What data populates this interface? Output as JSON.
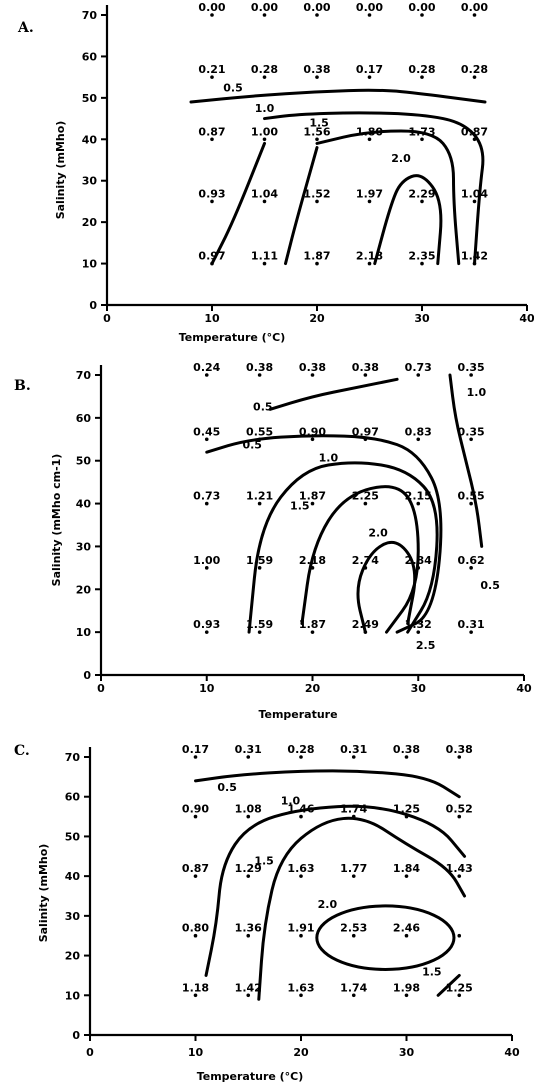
{
  "chart_data": [
    {
      "type": "heatmap",
      "panel_label": "A.",
      "xlabel": "Temperature (°C)",
      "ylabel": "Salinity (mMho)",
      "xlim": [
        0,
        40
      ],
      "ylim": [
        0,
        70
      ],
      "xticks": [
        0,
        10,
        20,
        30,
        40
      ],
      "yticks": [
        0,
        10,
        20,
        30,
        40,
        50,
        60,
        70
      ],
      "x": [
        10,
        15,
        20,
        25,
        30,
        35
      ],
      "y": [
        70,
        55,
        40,
        25,
        10
      ],
      "values": [
        [
          "0.00",
          "0.00",
          "0.00",
          "0.00",
          "0.00",
          "0.00"
        ],
        [
          "0.21",
          "0.28",
          "0.38",
          "0.17",
          "0.28",
          "0.28"
        ],
        [
          "0.87",
          "1.00",
          "1.56",
          "1.80",
          "1.73",
          "0.87"
        ],
        [
          "0.93",
          "1.04",
          "1.52",
          "1.97",
          "2.29",
          "1.04"
        ],
        [
          "0.97",
          "1.11",
          "1.87",
          "2.18",
          "2.35",
          "1.42"
        ]
      ],
      "contour_labels": [
        "0.5",
        "1.0",
        "1.5",
        "2.0"
      ]
    },
    {
      "type": "heatmap",
      "panel_label": "B.",
      "xlabel": "Temperature",
      "ylabel": "Salinity (mMho cm-1)",
      "xlim": [
        0,
        40
      ],
      "ylim": [
        0,
        70
      ],
      "xticks": [
        0,
        10,
        20,
        30,
        40
      ],
      "yticks": [
        0,
        10,
        20,
        30,
        40,
        50,
        60,
        70
      ],
      "x": [
        10,
        15,
        20,
        25,
        30,
        35
      ],
      "y": [
        70,
        55,
        40,
        25,
        10
      ],
      "values": [
        [
          "0.24",
          "0.38",
          "0.38",
          "0.38",
          "0.73",
          "0.35"
        ],
        [
          "0.45",
          "0.55",
          "0.90",
          "0.97",
          "0.83",
          "0.35"
        ],
        [
          "0.73",
          "1.21",
          "1.87",
          "2.25",
          "2.15",
          "0.55"
        ],
        [
          "1.00",
          "1.59",
          "2.18",
          "2.74",
          "2.84",
          "0.62"
        ],
        [
          "0.93",
          "1.59",
          "1.87",
          "2.49",
          "1.32",
          "0.31"
        ]
      ],
      "contour_labels": [
        "0.5",
        "0.5",
        "1.0",
        "1.5",
        "2.0",
        "2.5",
        "1.0",
        "0.5"
      ]
    },
    {
      "type": "heatmap",
      "panel_label": "C.",
      "xlabel": "Temperature (°C)",
      "ylabel": "Salinity (mMho)",
      "xlim": [
        0,
        40
      ],
      "ylim": [
        0,
        70
      ],
      "xticks": [
        0,
        10,
        20,
        30,
        40
      ],
      "yticks": [
        0,
        10,
        20,
        30,
        40,
        50,
        60,
        70
      ],
      "x": [
        10,
        15,
        20,
        25,
        30,
        35
      ],
      "y": [
        70,
        55,
        40,
        25,
        10
      ],
      "values": [
        [
          "0.17",
          "0.31",
          "0.28",
          "0.31",
          "0.38",
          "0.38"
        ],
        [
          "0.90",
          "1.08",
          "1.46",
          "1.74",
          "1.25",
          "0.52"
        ],
        [
          "0.87",
          "1.29",
          "1.63",
          "1.77",
          "1.84",
          "1.43"
        ],
        [
          "0.80",
          "1.36",
          "1.91",
          "2.53",
          "2.46",
          ""
        ],
        [
          "1.18",
          "1.42",
          "1.63",
          "1.74",
          "1.98",
          "1.25"
        ]
      ],
      "contour_labels": [
        "0.5",
        "1.0",
        "1.5",
        "2.0",
        "1.5"
      ]
    }
  ]
}
